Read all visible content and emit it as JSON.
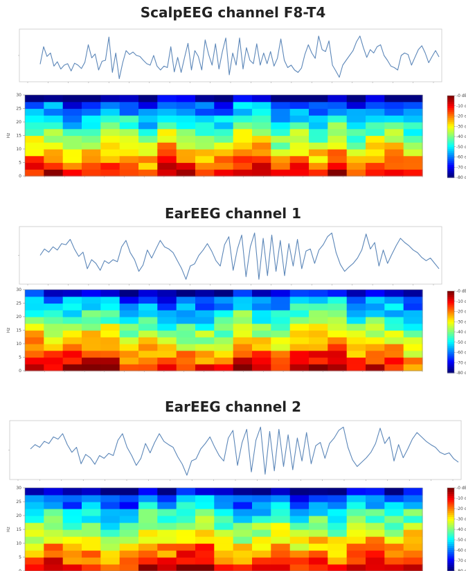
{
  "panels": [
    {
      "title": "ScalpEEG channel F8-T4"
    },
    {
      "title": "EarEEG channel 1"
    },
    {
      "title": "EarEEG channel 2"
    }
  ],
  "chart_data": [
    {
      "type": "line",
      "title": "ScalpEEG channel F8-T4",
      "series": [
        {
          "values": [
            0.32,
            0.68,
            0.48,
            0.55,
            0.28,
            0.37,
            0.22,
            0.3,
            0.33,
            0.18,
            0.34,
            0.3,
            0.23,
            0.36,
            0.72,
            0.45,
            0.53,
            0.2,
            0.38,
            0.4,
            0.88,
            0.15,
            0.55,
            0.02,
            0.35,
            0.6,
            0.52,
            0.57,
            0.5,
            0.48,
            0.4,
            0.33,
            0.3,
            0.5,
            0.28,
            0.2,
            0.28,
            0.25,
            0.68,
            0.16,
            0.46,
            0.15,
            0.46,
            0.75,
            0.2,
            0.6,
            0.48,
            0.2,
            0.82,
            0.52,
            0.3,
            0.74,
            0.22,
            0.58,
            0.86,
            0.1,
            0.55,
            0.3,
            0.86,
            0.22,
            0.66,
            0.4,
            0.33,
            0.74,
            0.3,
            0.55,
            0.33,
            0.58,
            0.28,
            0.44,
            0.84,
            0.4,
            0.25,
            0.3,
            0.2,
            0.15,
            0.24,
            0.52,
            0.72,
            0.55,
            0.44,
            0.9,
            0.62,
            0.58,
            0.8,
            0.3,
            0.18,
            0.05,
            0.3,
            0.4,
            0.5,
            0.6,
            0.78,
            0.9,
            0.66,
            0.46,
            0.62,
            0.55,
            0.68,
            0.72,
            0.5,
            0.4,
            0.28,
            0.25,
            0.2,
            0.5,
            0.55,
            0.52,
            0.3,
            0.46,
            0.62,
            0.7,
            0.55,
            0.35,
            0.48,
            0.6,
            0.47
          ]
        }
      ],
      "spectrogram": {
        "y_max": 30,
        "y_ticks": [
          0,
          5,
          10,
          15,
          20,
          25,
          30
        ],
        "colorbar": {
          "min": -80,
          "max": 0,
          "ticks": [
            "-0 dB",
            "-10 dB",
            "-20 dB",
            "-30 dB",
            "-40 dB",
            "-50 dB",
            "-60 dB",
            "-70 dB",
            "-80 dB"
          ]
        },
        "n_cols": 21,
        "n_rows": 12
      }
    },
    {
      "type": "line",
      "title": "EarEEG channel 1",
      "series": [
        {
          "values": [
            0.5,
            0.62,
            0.56,
            0.66,
            0.6,
            0.72,
            0.7,
            0.8,
            0.62,
            0.48,
            0.56,
            0.25,
            0.42,
            0.35,
            0.22,
            0.4,
            0.35,
            0.42,
            0.38,
            0.66,
            0.78,
            0.55,
            0.42,
            0.2,
            0.32,
            0.6,
            0.45,
            0.62,
            0.78,
            0.66,
            0.62,
            0.55,
            0.4,
            0.25,
            0.05,
            0.3,
            0.34,
            0.5,
            0.6,
            0.72,
            0.58,
            0.4,
            0.3,
            0.7,
            0.85,
            0.22,
            0.62,
            0.88,
            0.1,
            0.66,
            0.92,
            0.05,
            0.82,
            0.12,
            0.88,
            0.2,
            0.78,
            0.12,
            0.72,
            0.3,
            0.8,
            0.25,
            0.58,
            0.62,
            0.35,
            0.6,
            0.7,
            0.85,
            0.92,
            0.55,
            0.33,
            0.2,
            0.28,
            0.35,
            0.45,
            0.6,
            0.9,
            0.62,
            0.74,
            0.3,
            0.6,
            0.35,
            0.52,
            0.68,
            0.82,
            0.74,
            0.68,
            0.6,
            0.55,
            0.46,
            0.4,
            0.45,
            0.35,
            0.25
          ]
        }
      ],
      "spectrogram": {
        "y_max": 30,
        "y_ticks": [
          0,
          5,
          10,
          15,
          20,
          25,
          30
        ],
        "colorbar": {
          "min": -80,
          "max": 0,
          "ticks": [
            "-0 dB",
            "-10 dB",
            "-20 dB",
            "-30 dB",
            "-40 dB",
            "-50 dB",
            "-60 dB",
            "-70 dB",
            "-80 dB"
          ]
        },
        "n_cols": 21,
        "n_rows": 12
      }
    },
    {
      "type": "line",
      "title": "EarEEG channel 2",
      "series": [
        {
          "values": [
            0.52,
            0.6,
            0.55,
            0.66,
            0.62,
            0.74,
            0.7,
            0.8,
            0.6,
            0.46,
            0.55,
            0.25,
            0.42,
            0.36,
            0.24,
            0.4,
            0.35,
            0.44,
            0.4,
            0.68,
            0.8,
            0.55,
            0.4,
            0.22,
            0.35,
            0.62,
            0.45,
            0.64,
            0.8,
            0.66,
            0.6,
            0.55,
            0.38,
            0.24,
            0.04,
            0.3,
            0.34,
            0.52,
            0.62,
            0.74,
            0.56,
            0.4,
            0.3,
            0.72,
            0.86,
            0.22,
            0.64,
            0.88,
            0.1,
            0.68,
            0.92,
            0.06,
            0.84,
            0.12,
            0.88,
            0.2,
            0.78,
            0.14,
            0.72,
            0.3,
            0.82,
            0.25,
            0.58,
            0.64,
            0.35,
            0.62,
            0.72,
            0.86,
            0.92,
            0.55,
            0.32,
            0.2,
            0.28,
            0.36,
            0.46,
            0.62,
            0.9,
            0.62,
            0.74,
            0.3,
            0.6,
            0.36,
            0.52,
            0.7,
            0.82,
            0.74,
            0.66,
            0.6,
            0.55,
            0.46,
            0.42,
            0.45,
            0.34,
            0.28
          ]
        }
      ],
      "spectrogram": {
        "y_max": 30,
        "y_ticks": [
          0,
          5,
          10,
          15,
          20,
          25,
          30
        ],
        "colorbar": {
          "min": -80,
          "max": 0,
          "ticks": [
            "-0 dB",
            "-10 dB",
            "-20 dB",
            "-30 dB",
            "-40 dB",
            "-50 dB",
            "-60 dB",
            "-70 dB",
            "-80 dB"
          ]
        },
        "n_cols": 21,
        "n_rows": 12
      }
    }
  ]
}
